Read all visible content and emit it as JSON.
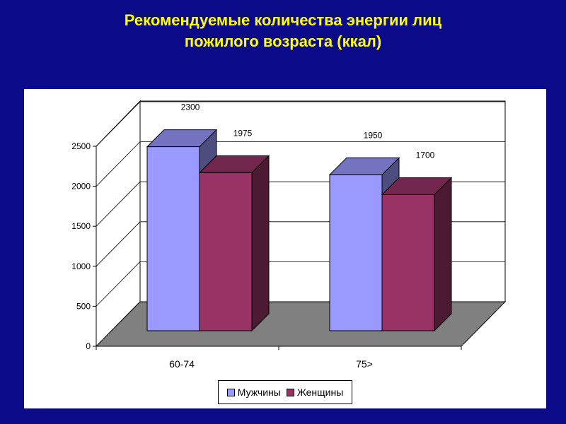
{
  "slide": {
    "title_line1": "Рекомендуемые количества энергии лиц",
    "title_line2": "пожилого возраста (ккал)"
  },
  "chart_data": {
    "type": "bar",
    "categories": [
      "60-74",
      "75>"
    ],
    "series": [
      {
        "name": "Мужчины",
        "values": [
          2300,
          1950
        ],
        "color": "#9999ff"
      },
      {
        "name": "Женщины",
        "values": [
          1975,
          1700
        ],
        "color": "#993366"
      }
    ],
    "ylim": [
      0,
      2500
    ],
    "yticks": [
      0,
      500,
      1000,
      1500,
      2000,
      2500
    ],
    "grid": true,
    "legend_position": "bottom",
    "style": "3d-clustered"
  }
}
